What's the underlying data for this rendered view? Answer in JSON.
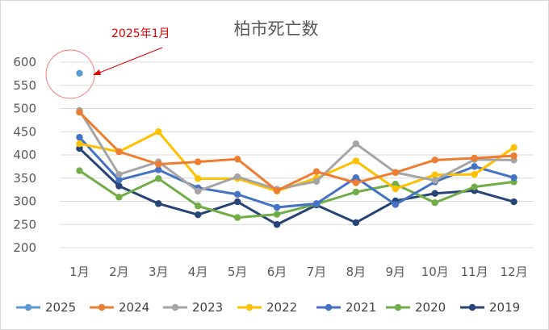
{
  "chart_data": {
    "type": "line",
    "title": "柏市死亡数",
    "categories": [
      "1月",
      "2月",
      "3月",
      "4月",
      "5月",
      "6月",
      "7月",
      "8月",
      "9月",
      "10月",
      "11月",
      "12月"
    ],
    "ylim": [
      200,
      600
    ],
    "yticks": [
      200,
      250,
      300,
      350,
      400,
      450,
      500,
      550,
      600
    ],
    "grid": true,
    "legend_position": "bottom",
    "series": [
      {
        "name": "2025",
        "color": "#5b9bd5",
        "values": [
          576,
          null,
          null,
          null,
          null,
          null,
          null,
          null,
          null,
          null,
          null,
          null
        ]
      },
      {
        "name": "2024",
        "color": "#ed7d31",
        "values": [
          492,
          407,
          380,
          385,
          391,
          323,
          364,
          340,
          362,
          389,
          393,
          398
        ]
      },
      {
        "name": "2023",
        "color": "#a5a5a5",
        "values": [
          496,
          358,
          385,
          322,
          353,
          326,
          343,
          424,
          362,
          345,
          390,
          389
        ]
      },
      {
        "name": "2022",
        "color": "#ffc000",
        "values": [
          424,
          407,
          450,
          349,
          349,
          322,
          350,
          387,
          327,
          357,
          358,
          416
        ]
      },
      {
        "name": "2021",
        "color": "#4472c4",
        "values": [
          438,
          346,
          368,
          329,
          315,
          287,
          295,
          351,
          293,
          342,
          375,
          351
        ]
      },
      {
        "name": "2020",
        "color": "#70ad47",
        "values": [
          366,
          309,
          349,
          290,
          265,
          272,
          294,
          320,
          337,
          297,
          331,
          342
        ]
      },
      {
        "name": "2019",
        "color": "#264478",
        "values": [
          414,
          333,
          295,
          271,
          299,
          250,
          292,
          254,
          301,
          317,
          323,
          299
        ]
      }
    ],
    "annotation": {
      "text": "2025年1月",
      "color": "#e00000"
    }
  }
}
